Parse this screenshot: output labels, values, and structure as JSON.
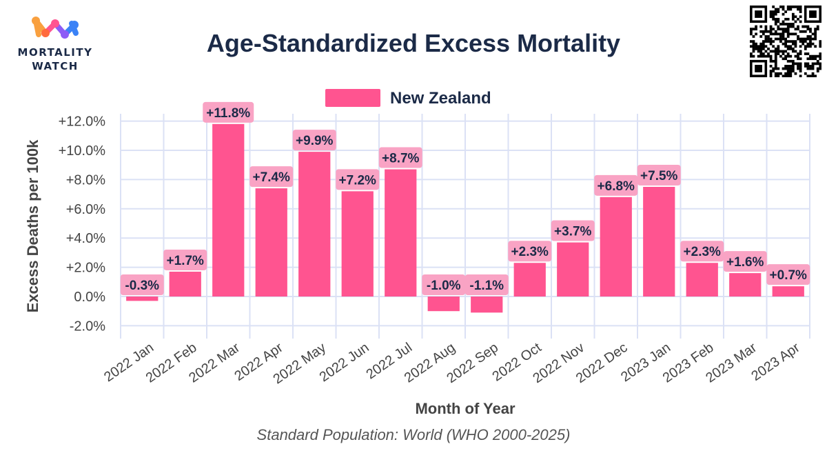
{
  "header": {
    "title": "Age-Standardized Excess Mortality",
    "logo_line1": "MORTALITY",
    "logo_line2": "WATCH"
  },
  "footnote": "Standard Population: World (WHO 2000-2025)",
  "colors": {
    "bar": "#ff5490",
    "label_bg": "#f9a3c4",
    "grid": "#dbe1f5",
    "text": "#1b2a47"
  },
  "chart_data": {
    "type": "bar",
    "title": "Age-Standardized Excess Mortality",
    "xlabel": "Month of Year",
    "ylabel": "Excess Deaths per 100k",
    "ylim": [
      -2.5,
      12.5
    ],
    "yticks": [
      "+12.0%",
      "+10.0%",
      "+8.0%",
      "+6.0%",
      "+4.0%",
      "+2.0%",
      "0.0%",
      "-2.0%"
    ],
    "ytick_values": [
      12,
      10,
      8,
      6,
      4,
      2,
      0,
      -2
    ],
    "grid": true,
    "legend_position": "top-center",
    "categories": [
      "2022 Jan",
      "2022 Feb",
      "2022 Mar",
      "2022 Apr",
      "2022 May",
      "2022 Jun",
      "2022 Jul",
      "2022 Aug",
      "2022 Sep",
      "2022 Oct",
      "2022 Nov",
      "2022 Dec",
      "2023 Jan",
      "2023 Feb",
      "2023 Mar",
      "2023 Apr"
    ],
    "series": [
      {
        "name": "New Zealand",
        "values": [
          -0.3,
          1.7,
          11.8,
          7.4,
          9.9,
          7.2,
          8.7,
          -1.0,
          -1.1,
          2.3,
          3.7,
          6.8,
          7.5,
          2.3,
          1.6,
          0.7
        ],
        "labels": [
          "-0.3%",
          "+1.7%",
          "+11.8%",
          "+7.4%",
          "+9.9%",
          "+7.2%",
          "+8.7%",
          "-1.0%",
          "-1.1%",
          "+2.3%",
          "+3.7%",
          "+6.8%",
          "+7.5%",
          "+2.3%",
          "+1.6%",
          "+0.7%"
        ]
      }
    ]
  }
}
